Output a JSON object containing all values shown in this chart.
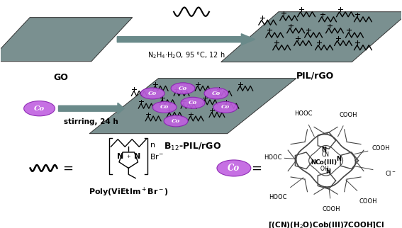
{
  "bg_color": "#ffffff",
  "sheet_color": "#7a9090",
  "arrow_color": "#6a8a8a",
  "ellipse_color_fill": "#c060e0",
  "wavy_color": "#111111",
  "text_GO": "GO",
  "text_PIL_rGO": "PIL/rGO",
  "text_B12_PIL_rGO": "B$_{12}$-PIL/rGO",
  "text_arrow_top": "N$_2$H$_4$·H$_2$O, 95 °C, 12 h",
  "text_stirring": "stirring, 24 h",
  "text_poly": "Poly(ViEtIm$^+$Br$^-$)",
  "text_CN_eq": "[(CN)(H$_2$O)Cob(III)7COOH]Cl",
  "text_Co": "Co",
  "structure_color": "#444444",
  "figsize": [
    5.67,
    3.22
  ],
  "dpi": 100
}
